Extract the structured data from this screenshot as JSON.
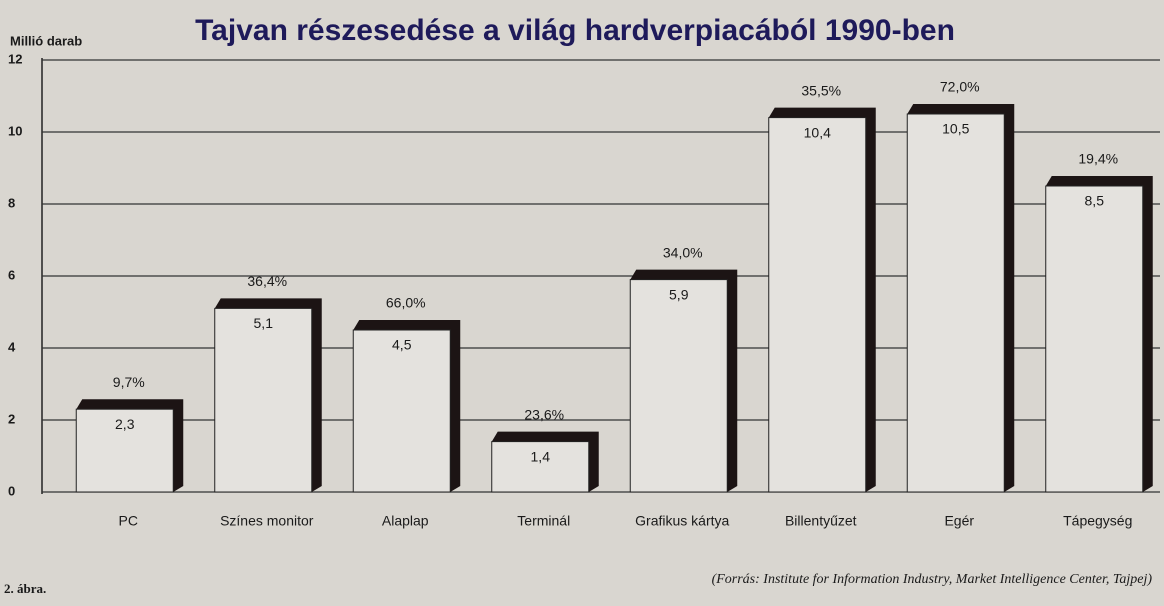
{
  "chart_data": {
    "type": "bar",
    "title": "Tajvan részesedése a világ hardverpiacából 1990-ben",
    "y_label": "Millió darab",
    "categories": [
      "PC",
      "Színes monitor",
      "Alaplap",
      "Terminál",
      "Grafikus kártya",
      "Billentyűzet",
      "Egér",
      "Tápegység"
    ],
    "values": [
      2.3,
      5.1,
      4.5,
      1.4,
      5.9,
      10.4,
      10.5,
      8.5
    ],
    "value_labels": [
      "2,3",
      "5,1",
      "4,5",
      "1,4",
      "5,9",
      "10,4",
      "10,5",
      "8,5"
    ],
    "shares": {
      "values": [
        9.7,
        36.4,
        66.0,
        23.6,
        34.0,
        35.5,
        72.0,
        19.4
      ],
      "value_labels": [
        "9,7%",
        "36,4%",
        "66,0%",
        "23,6%",
        "34,0%",
        "35,5%",
        "72,0%",
        "19,4%"
      ]
    },
    "color": "#e4e2de",
    "shadow_color": "#1c1414",
    "ylim": [
      0,
      12
    ],
    "yticks": [
      0,
      2,
      4,
      6,
      8,
      10,
      12
    ],
    "grid": true,
    "figure_label": "2. ábra.",
    "source": "(Forrás: Institute for Information Industry, Market Intelligence Center, Tajpej)"
  }
}
